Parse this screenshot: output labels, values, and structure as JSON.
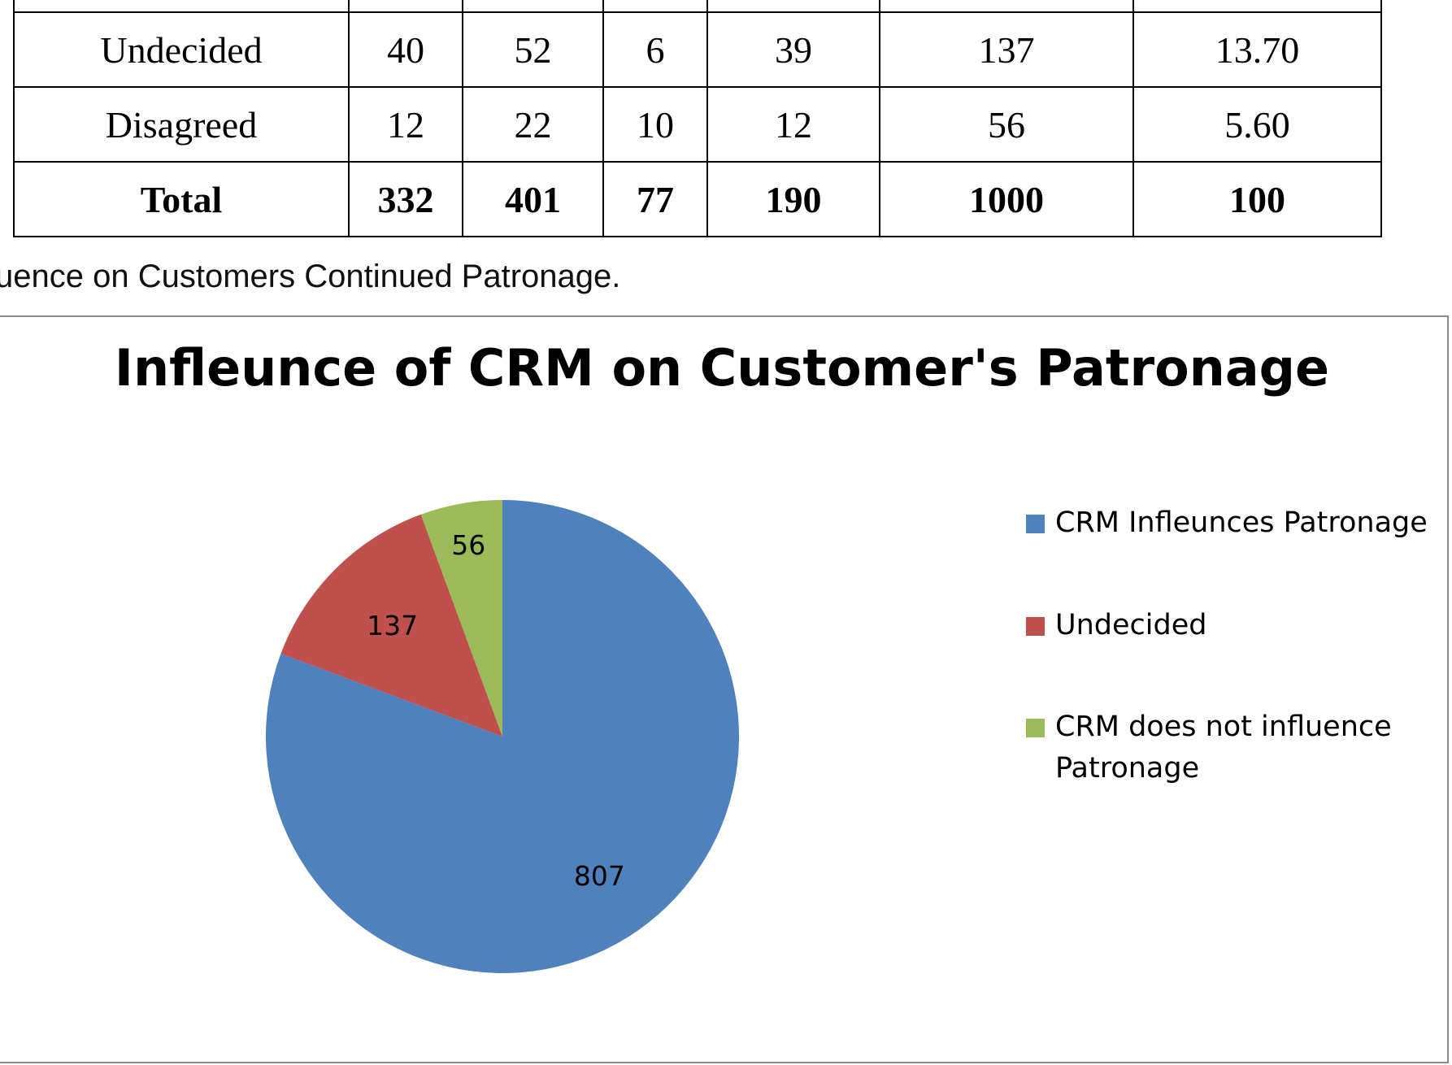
{
  "table": {
    "rows": [
      {
        "label": "Undecided",
        "values": [
          "40",
          "52",
          "6",
          "39",
          "137",
          "13.70"
        ]
      },
      {
        "label": "Disagreed",
        "values": [
          "12",
          "22",
          "10",
          "12",
          "56",
          "5.60"
        ]
      },
      {
        "label": "Total",
        "values": [
          "332",
          "401",
          "77",
          "190",
          "1000",
          "100"
        ]
      }
    ]
  },
  "caption": "uence on Customers Continued Patronage.",
  "chart_data": {
    "type": "pie",
    "title": "Infleunce of CRM on Customer's Patronage",
    "categories": [
      "CRM Infleunces Patronage",
      "Undecided",
      "CRM does not influence Patronage"
    ],
    "values": [
      807,
      137,
      56
    ],
    "colors": [
      "#4f81bd",
      "#c0504d",
      "#9bbb59"
    ],
    "data_labels": [
      "807",
      "137",
      "56"
    ],
    "legend_placement": "right",
    "start_angle": "12 o'clock",
    "direction": "clockwise"
  }
}
